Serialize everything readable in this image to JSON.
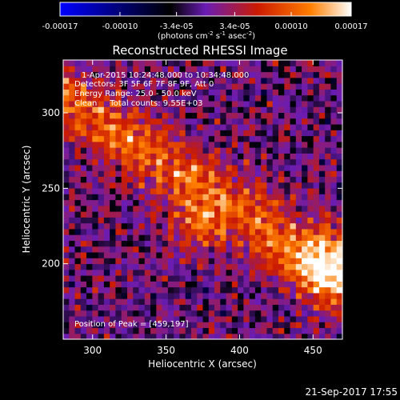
{
  "chart_data": {
    "type": "heatmap",
    "title": "Reconstructed RHESSI Image",
    "xlabel": "Heliocentric X (arcsec)",
    "ylabel": "Heliocentric Y (arcsec)",
    "xlim": [
      280,
      470
    ],
    "ylim": [
      150,
      335
    ],
    "xticks": [
      300,
      350,
      400,
      450
    ],
    "yticks": [
      200,
      250,
      300
    ],
    "colorbar": {
      "range": [
        -0.00017,
        0.00017
      ],
      "tick_values": [
        -0.00017,
        -0.0001,
        -3.4e-05,
        3.4e-05,
        0.0001,
        0.00017
      ],
      "tick_labels": [
        "-0.00017",
        "-0.00010",
        "-3.4e-05",
        "3.4e-05",
        "0.00010",
        "0.00017"
      ],
      "unit_prefix": "(photons cm",
      "unit_exp1": "-2",
      "unit_mid": " s",
      "unit_exp2": "-1",
      "unit_mid2": " asec",
      "unit_exp3": "-2",
      "unit_suffix": ")"
    },
    "annotations": [
      "1-Apr-2015 10:24:48.000 to 10:34:48.000",
      "Detectors: 3F 5F 6F 7F 8F 9F, Att 0",
      "Energy Range: 25.0 - 50.0 keV",
      "Clean     Total counts: 9.55E+03"
    ],
    "peak_label": "Position of Peak = [459,197]",
    "peak": [
      459,
      197
    ],
    "colors": [
      "#0000ff",
      "#000000",
      "#6a1cb4",
      "#cc1b00",
      "#ff7e00",
      "#ffffff"
    ],
    "grid": false
  },
  "footer": {
    "date": "21-Sep-2017 17:55"
  }
}
